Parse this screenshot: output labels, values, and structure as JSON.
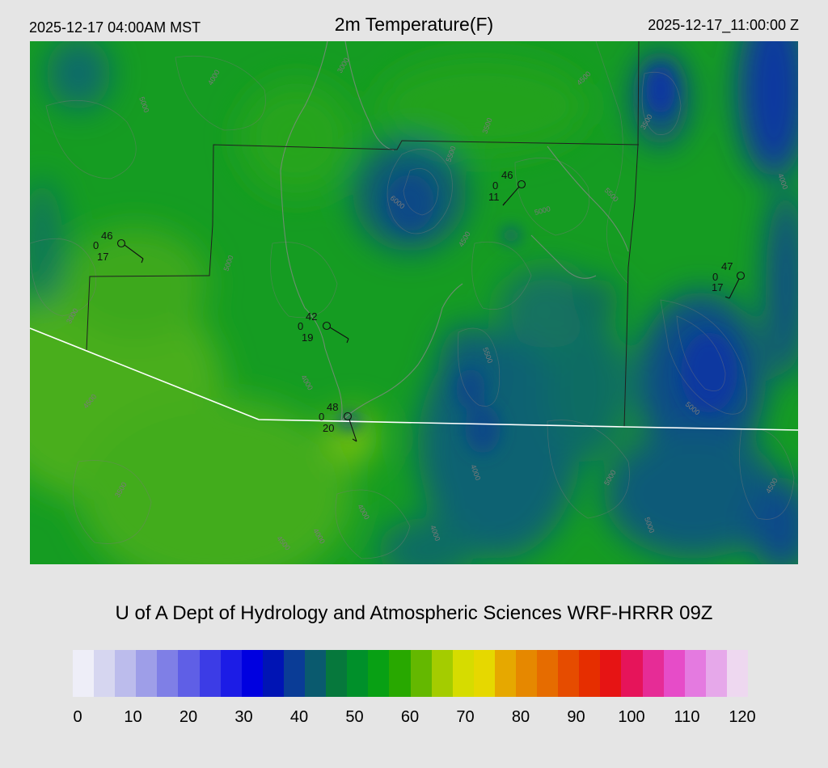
{
  "header": {
    "local_time": "2025-12-17 04:00AM MST",
    "title": "2m Temperature(F)",
    "utc_time": "2025-12-17_11:00:00 Z"
  },
  "footer_title": "U of A Dept of Hydrology and Atmospheric Sciences WRF-HRRR 09Z",
  "colorbar": {
    "ticks": [
      "0",
      "10",
      "20",
      "30",
      "40",
      "50",
      "60",
      "70",
      "80",
      "90",
      "100",
      "110",
      "120"
    ],
    "colors": [
      "#eeeef8",
      "#d6d6f0",
      "#bcbcec",
      "#9e9ee8",
      "#7f7fe6",
      "#5f5fe6",
      "#3c3ce6",
      "#1c1ce6",
      "#0000e0",
      "#0014b4",
      "#0a3c96",
      "#0a5a6e",
      "#06783c",
      "#00902a",
      "#08a014",
      "#28a800",
      "#64b800",
      "#a4cc00",
      "#d6dc00",
      "#e6d800",
      "#e6a800",
      "#e68800",
      "#e66c00",
      "#e64c00",
      "#e62e00",
      "#e61414",
      "#e6145a",
      "#e62c96",
      "#e64cc8",
      "#e47ae0",
      "#e6a8ea",
      "#eed8f0"
    ]
  },
  "stations": [
    {
      "temp": "46",
      "dew": "17",
      "cloud": "0"
    },
    {
      "temp": "46",
      "dew": "11",
      "cloud": "0"
    },
    {
      "temp": "47",
      "dew": "17",
      "cloud": "0"
    },
    {
      "temp": "42",
      "dew": "19",
      "cloud": "0"
    },
    {
      "temp": "48",
      "dew": "20",
      "cloud": "0"
    }
  ],
  "contour_labels": [
    "3000",
    "4000",
    "4500",
    "5000",
    "5500",
    "6000",
    "3500"
  ]
}
